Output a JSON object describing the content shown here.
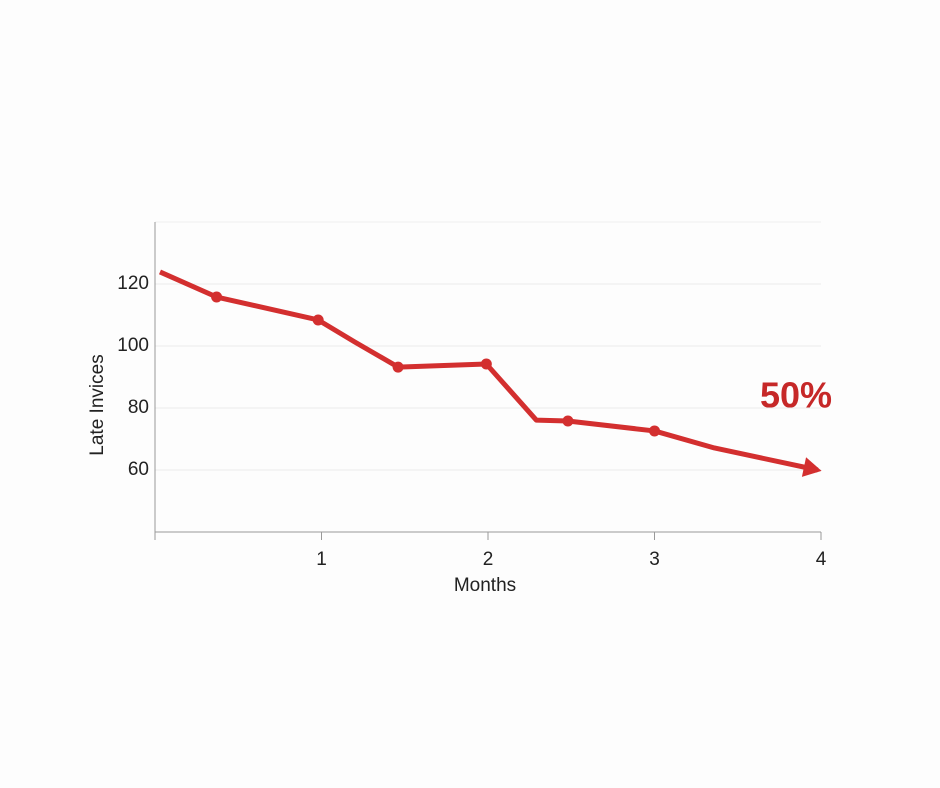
{
  "chart_data": {
    "type": "line",
    "x_label": "Months",
    "y_label": "Late Invices",
    "annotation": "50%",
    "x": [
      0.03,
      0.37,
      0.98,
      1.2,
      1.46,
      1.99,
      2.29,
      2.48,
      3.0,
      3.36,
      3.98
    ],
    "series": [
      {
        "name": "Late Invices",
        "color": "#d32f2f",
        "values": [
          123.9,
          115.8,
          108.4,
          101.3,
          93.2,
          94.2,
          76.1,
          75.8,
          72.6,
          67.1,
          60
        ],
        "markers": [
          false,
          true,
          true,
          false,
          true,
          true,
          false,
          true,
          true,
          false,
          false
        ]
      }
    ],
    "xlim": [
      0,
      4
    ],
    "xticks": [
      1,
      2,
      3,
      4
    ],
    "ylim": [
      40,
      140
    ],
    "yticks": [
      60,
      80,
      100,
      120
    ],
    "grid": true,
    "arrow_end": true
  }
}
